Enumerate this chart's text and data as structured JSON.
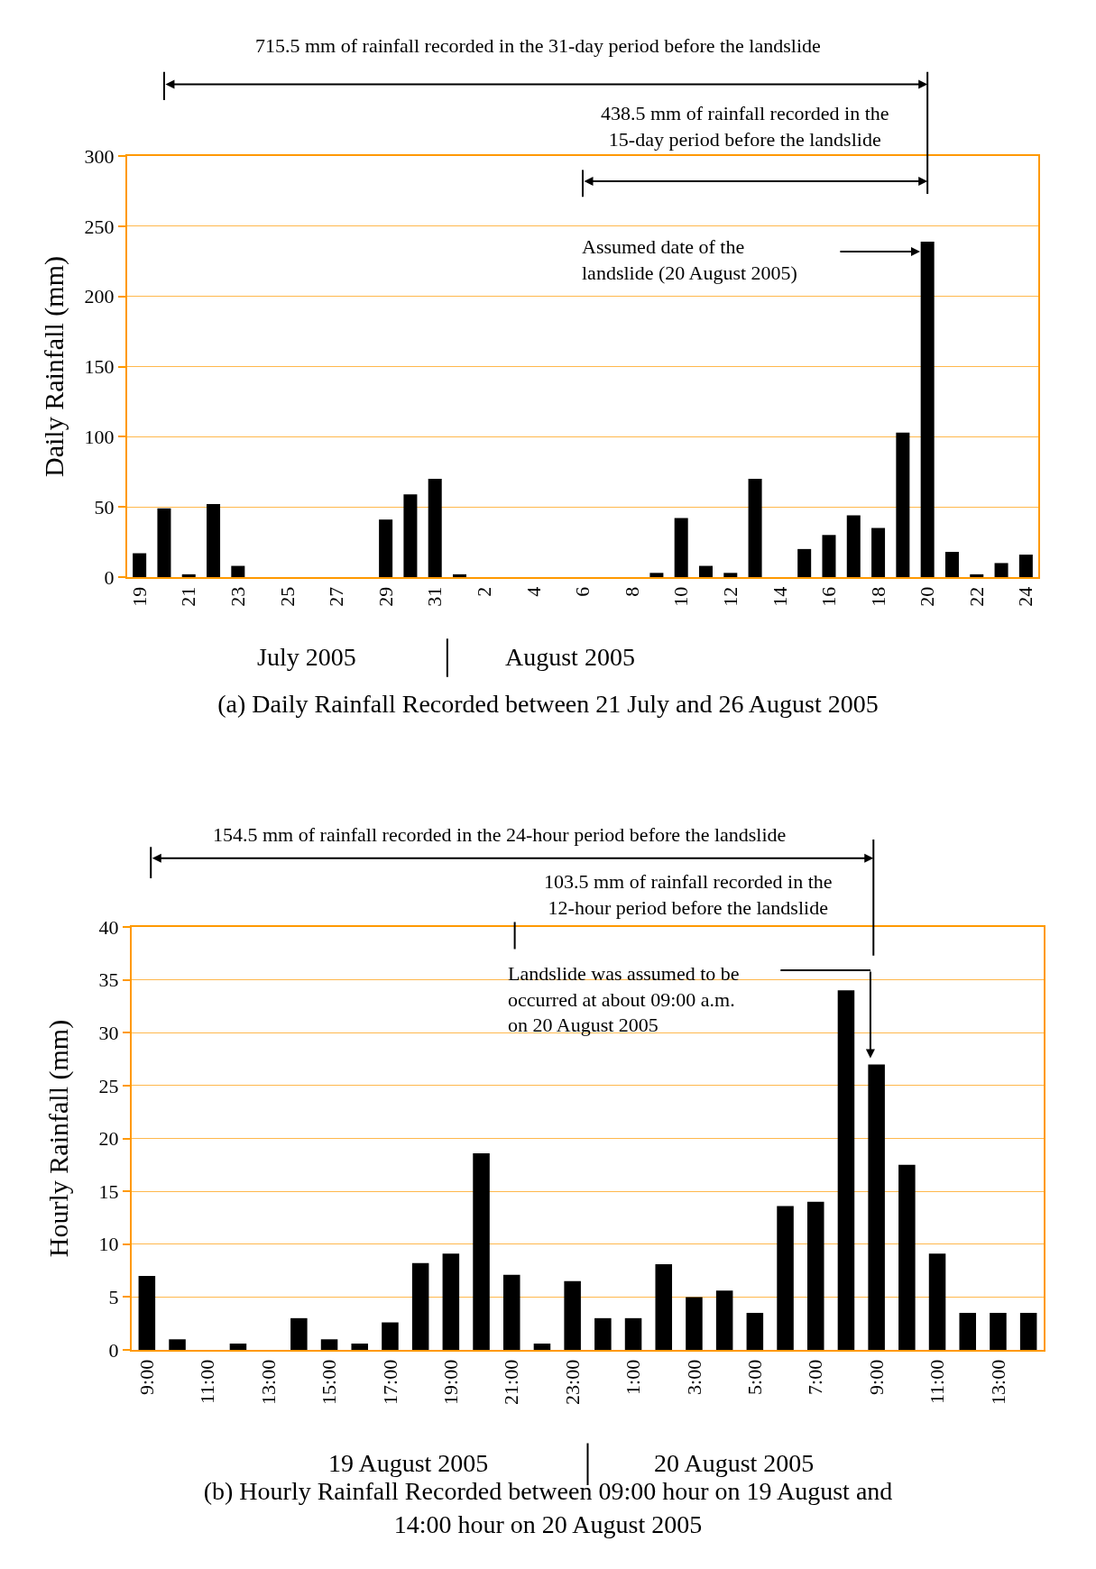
{
  "chart_data": [
    {
      "type": "bar",
      "title": "(a) Daily Rainfall Recorded between 21 July and 26 August 2005",
      "ylabel": "Daily Rainfall (mm)",
      "categories": [
        "19",
        null,
        "21",
        null,
        "23",
        null,
        "25",
        null,
        "27",
        null,
        "29",
        null,
        "31",
        null,
        "2",
        null,
        "4",
        null,
        "6",
        null,
        "8",
        null,
        "10",
        null,
        "12",
        null,
        "14",
        null,
        "16",
        null,
        "18",
        null,
        "20",
        null,
        "22",
        null,
        "24"
      ],
      "values": [
        17,
        49,
        2,
        52,
        8,
        0,
        0,
        0,
        0,
        0,
        41,
        59,
        70,
        2,
        0,
        0,
        0,
        0,
        0,
        0,
        0,
        3,
        42,
        8,
        3,
        70,
        0,
        20,
        30,
        44,
        35,
        103,
        239,
        18,
        2,
        10,
        16
      ],
      "color": "#000000",
      "ylim": [
        0,
        300
      ],
      "yticks": [
        0,
        50,
        100,
        150,
        200,
        250,
        300
      ],
      "grid": "y",
      "annotations": [
        "715.5 mm of rainfall recorded in the 31-day period before the landslide",
        "438.5 mm of rainfall recorded in the\n15-day period before the landslide",
        "Assumed date of the\nlandslide (20 August 2005)",
        "July 2005",
        "August 2005"
      ]
    },
    {
      "type": "bar",
      "title": "(b) Hourly Rainfall Recorded between 09:00 hour on 19 August and\n14:00 hour on 20 August 2005",
      "ylabel": "Hourly Rainfall (mm)",
      "categories": [
        "9:00",
        null,
        "11:00",
        null,
        "13:00",
        null,
        "15:00",
        null,
        "17:00",
        null,
        "19:00",
        null,
        "21:00",
        null,
        "23:00",
        null,
        "1:00",
        null,
        "3:00",
        null,
        "5:00",
        null,
        "7:00",
        null,
        "9:00",
        null,
        "11:00",
        null,
        "13:00",
        null
      ],
      "values": [
        7,
        1,
        0,
        0.6,
        0,
        3,
        1,
        0.6,
        2.6,
        8.2,
        9.1,
        18.6,
        7.1,
        0.6,
        6.5,
        3,
        3,
        8.1,
        5,
        5.6,
        3.5,
        13.6,
        14,
        34,
        27,
        17.5,
        9.1,
        3.5,
        3.5,
        3.5
      ],
      "color": "#000000",
      "ylim": [
        0,
        40
      ],
      "yticks": [
        0,
        5,
        10,
        15,
        20,
        25,
        30,
        35,
        40
      ],
      "grid": "y",
      "annotations": [
        "154.5 mm of rainfall recorded in the 24-hour period before the landslide",
        "103.5 mm of rainfall recorded in the\n12-hour period before the landslide",
        "Landslide was assumed to be\noccurred at about 09:00 a.m.\non 20 August 2005",
        "19 August 2005",
        "20 August 2005"
      ]
    }
  ]
}
